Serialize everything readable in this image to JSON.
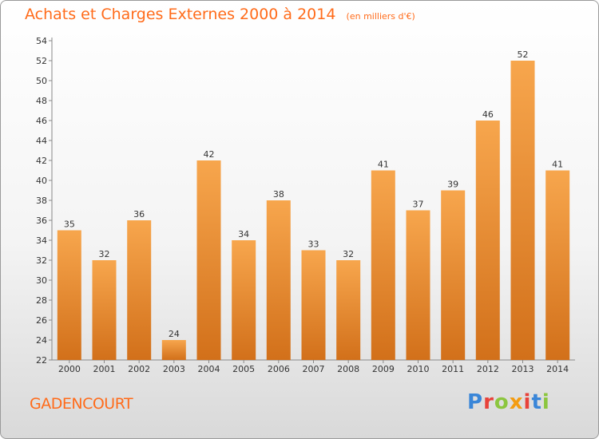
{
  "header": {
    "title": "Achats et Charges Externes 2000 à 2014",
    "subtitle": "(en milliers d'€)"
  },
  "footer": {
    "commune": "GADENCOURT",
    "logo_text": "Proxiti",
    "logo_colors": [
      "#3a86d8",
      "#e8423a",
      "#8cc63f",
      "#f39c12",
      "#e8423a",
      "#3a86d8",
      "#8cc63f"
    ]
  },
  "colors": {
    "bar_top": "#f7a64d",
    "bar_bottom": "#d2701a",
    "title": "#ff6b1a"
  },
  "chart_data": {
    "type": "bar",
    "categories": [
      "2000",
      "2001",
      "2002",
      "2003",
      "2004",
      "2005",
      "2006",
      "2007",
      "2008",
      "2009",
      "2010",
      "2011",
      "2012",
      "2013",
      "2014"
    ],
    "values": [
      35,
      32,
      36,
      24,
      42,
      34,
      38,
      33,
      32,
      41,
      37,
      39,
      46,
      52,
      41
    ],
    "title": "Achats et Charges Externes 2000 à 2014",
    "xlabel": "",
    "ylabel": "",
    "ylim": [
      22,
      54
    ],
    "yticks": [
      22,
      24,
      26,
      28,
      30,
      32,
      34,
      36,
      38,
      40,
      42,
      44,
      46,
      48,
      50,
      52,
      54
    ],
    "grid": false,
    "data_labels": true
  }
}
